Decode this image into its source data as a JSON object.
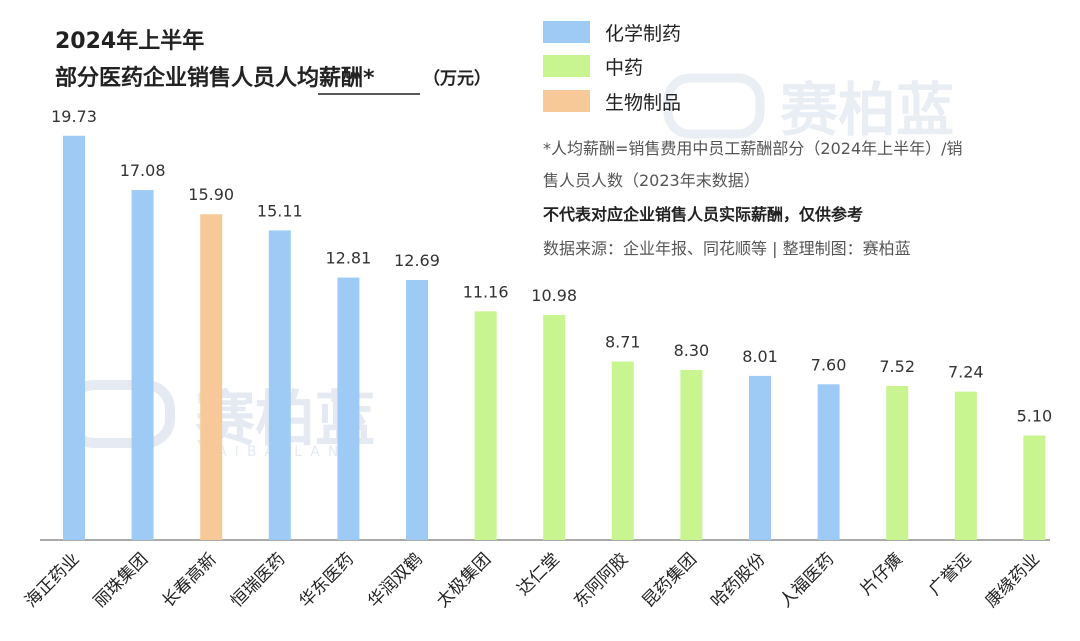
{
  "header": {
    "title_line1": "2024年上半年",
    "title_line2": "部分医药企业销售人员人均薪酬*",
    "unit": "（万元）"
  },
  "watermark": {
    "text": "赛柏蓝",
    "subtext": "SAIBAILAN"
  },
  "notes": {
    "line1": "*人均薪酬=销售费用中员工薪酬部分（2024年上半年）/销",
    "line2": "售人员人数（2023年末数据）",
    "line3": "不代表对应企业销售人员实际薪酬，仅供参考",
    "line4": "数据来源：企业年报、同花顺等 | 整理制图：赛柏蓝"
  },
  "colors": {
    "化学制药": "#9ecbf5",
    "中药": "#c8f590",
    "生物制品": "#f8c998"
  },
  "chart_data": {
    "type": "bar",
    "title": "2024年上半年 部分医药企业销售人员人均薪酬*（万元）",
    "legend": [
      "化学制药",
      "中药",
      "生物制品"
    ],
    "legend_position": "top-right",
    "grid": false,
    "ylim": [
      0,
      20.5
    ],
    "categories": [
      "海正药业",
      "丽珠集团",
      "长春高新",
      "恒瑞医药",
      "华东医药",
      "华润双鹤",
      "太极集团",
      "达仁堂",
      "东阿阿胶",
      "昆药集团",
      "哈药股份",
      "人福医药",
      "片仔癀",
      "广誉远",
      "康缘药业"
    ],
    "values": [
      19.73,
      17.08,
      15.9,
      15.11,
      12.81,
      12.69,
      11.16,
      10.98,
      8.71,
      8.3,
      8.01,
      7.6,
      7.52,
      7.24,
      5.1
    ],
    "value_labels": [
      "19.73",
      "17.08",
      "15.90",
      "15.11",
      "12.81",
      "12.69",
      "11.16",
      "10.98",
      "8.71",
      "8.30",
      "8.01",
      "7.60",
      "7.52",
      "7.24",
      "5.10"
    ],
    "groups": [
      "化学制药",
      "化学制药",
      "生物制品",
      "化学制药",
      "化学制药",
      "化学制药",
      "中药",
      "中药",
      "中药",
      "中药",
      "化学制药",
      "化学制药",
      "中药",
      "中药",
      "中药"
    ]
  }
}
